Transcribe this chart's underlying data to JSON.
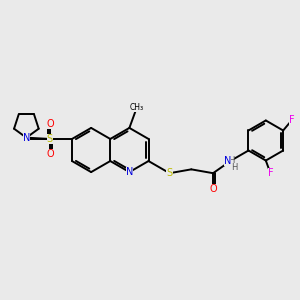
{
  "background_color": "#eaeaea",
  "atom_colors": {
    "N": "#0000dd",
    "O": "#ff0000",
    "S": "#bbbb00",
    "F": "#ee00ee",
    "H": "#555555",
    "C": "#000000"
  },
  "bond_color": "#000000",
  "bond_lw": 1.4,
  "font_size_atoms": 7.0,
  "font_size_methyl": 5.5,
  "xlim": [
    0,
    10
  ],
  "ylim": [
    0,
    10
  ]
}
